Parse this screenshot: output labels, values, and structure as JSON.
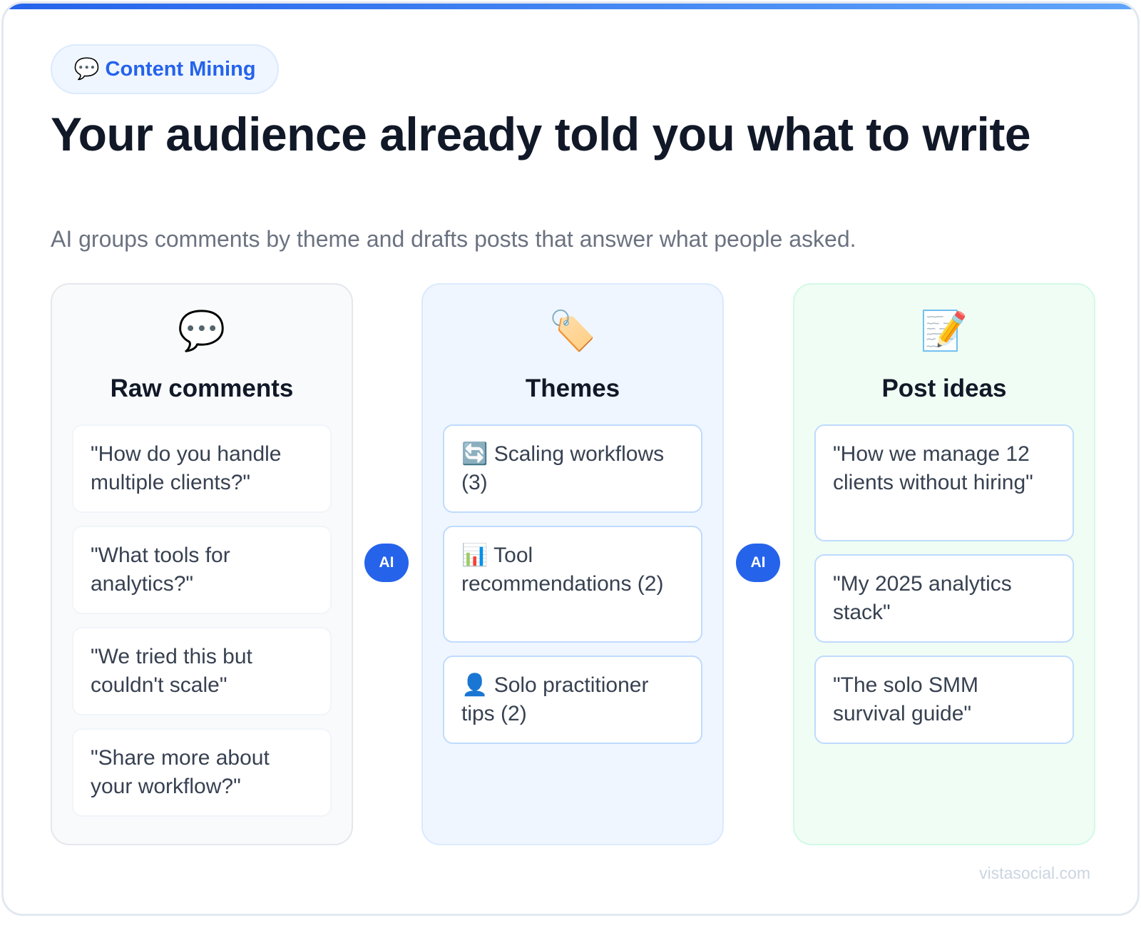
{
  "badge": {
    "icon": "speech-bubble-icon",
    "glyph": "💬",
    "label": "Content Mining"
  },
  "title": "Your audience already told you what to write",
  "subtitle": "AI groups comments by theme and drafts posts that answer what people asked.",
  "connector_label": "AI",
  "columns": [
    {
      "icon": "speech-bubble-icon",
      "glyph": "💬",
      "heading": "Raw comments",
      "items": [
        "\"How do you handle multiple clients?\"",
        "\"What tools for analytics?\"",
        "\"We tried this but couldn't scale\"",
        "\"Share more about your workflow?\""
      ]
    },
    {
      "icon": "tag-icon",
      "glyph": "🏷️",
      "heading": "Themes",
      "items": [
        "🔄 Scaling workflows (3)",
        "📊 Tool recommendations (2)",
        "👤 Solo practitioner tips (2)"
      ]
    },
    {
      "icon": "memo-icon",
      "glyph": "📝",
      "heading": "Post ideas",
      "items": [
        "\"How we manage 12 clients without hiring\"",
        "\"My 2025 analytics stack\"",
        "\"The solo SMM survival guide\""
      ]
    }
  ],
  "footer": "vistasocial.com",
  "colors": {
    "accent": "#2563eb",
    "title": "#111827",
    "subtitle": "#6b7280"
  }
}
